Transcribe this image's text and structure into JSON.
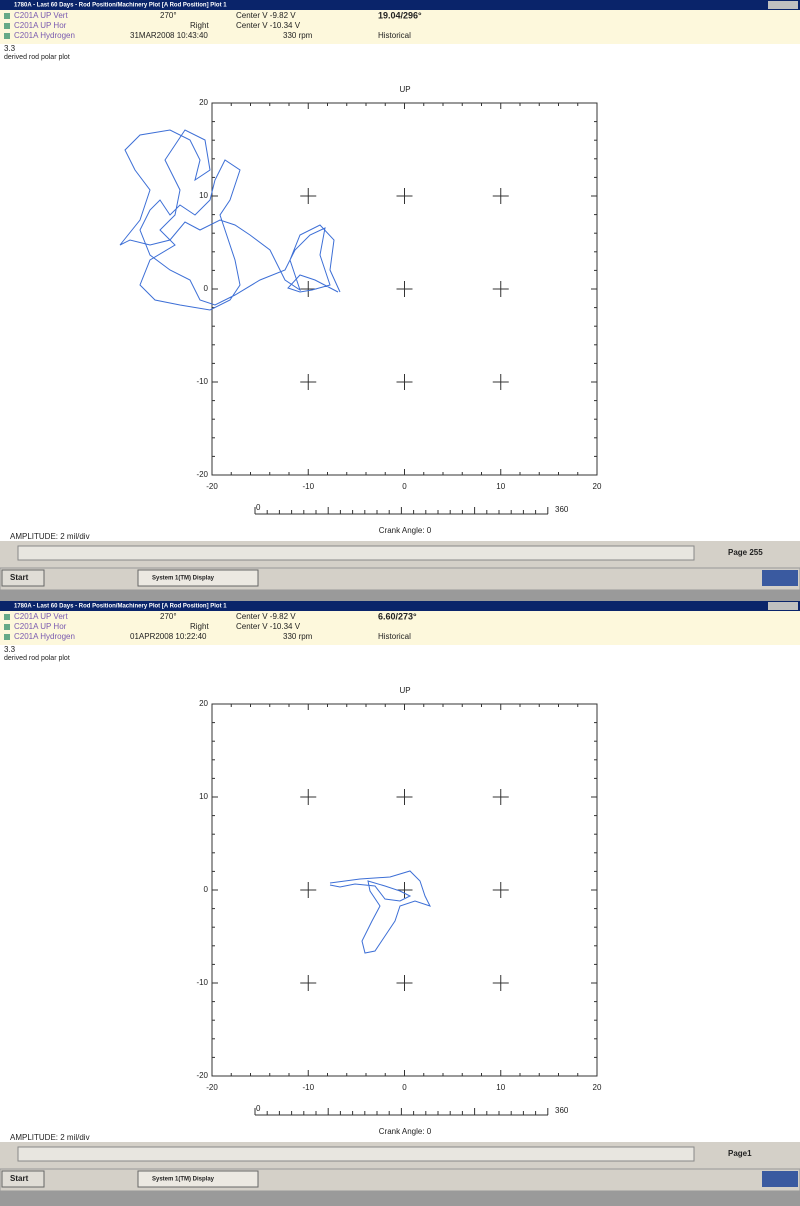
{
  "panels": [
    {
      "window_title": "1780A - Last 60 Days - Rod Position/Machinery Plot [A Rod Position] Plot 1",
      "rows": [
        {
          "name": "C201A UP Vert",
          "mid": "270°",
          "center": "Center V -9.82 V",
          "reading": "19.04/296°"
        },
        {
          "name": "C201A UP Hor",
          "mid": "Right",
          "center": "Center V -10.34 V",
          "reading": ""
        },
        {
          "name": "C201A Hydrogen",
          "mid": "31MAR2008 10:43:40",
          "center": "330 rpm",
          "reading": "Historical"
        }
      ],
      "scale": "3.3",
      "plot_name": "derived rod polar plot",
      "up_label": "UP",
      "xticks": [
        -20,
        -10,
        0,
        10,
        20
      ],
      "yticks": [
        20,
        10,
        0,
        -10,
        -20
      ],
      "crank_start": "0",
      "crank_end": "360",
      "crank_label": "Crank Angle: 0",
      "amplitude": "AMPLITUDE: 2 mil/div",
      "page": "Page 255",
      "start": "Start",
      "task": "System 1(TM) Display"
    },
    {
      "window_title": "1780A - Last 60 Days - Rod Position/Machinery Plot [A Rod Position] Plot 1",
      "rows": [
        {
          "name": "C201A UP Vert",
          "mid": "270°",
          "center": "Center V -9.82 V",
          "reading": "6.60/273°"
        },
        {
          "name": "C201A UP Hor",
          "mid": "Right",
          "center": "Center V -10.34 V",
          "reading": ""
        },
        {
          "name": "C201A Hydrogen",
          "mid": "01APR2008 10:22:40",
          "center": "330 rpm",
          "reading": "Historical"
        }
      ],
      "scale": "3.3",
      "plot_name": "derived rod polar plot",
      "up_label": "UP",
      "xticks": [
        -20,
        -10,
        0,
        10,
        20
      ],
      "yticks": [
        20,
        10,
        0,
        -10,
        -20
      ],
      "crank_start": "0",
      "crank_end": "360",
      "crank_label": "Crank Angle: 0",
      "amplitude": "AMPLITUDE: 2 mil/div",
      "page": "Page1",
      "start": "Start",
      "task": "System 1(TM) Display"
    }
  ]
}
